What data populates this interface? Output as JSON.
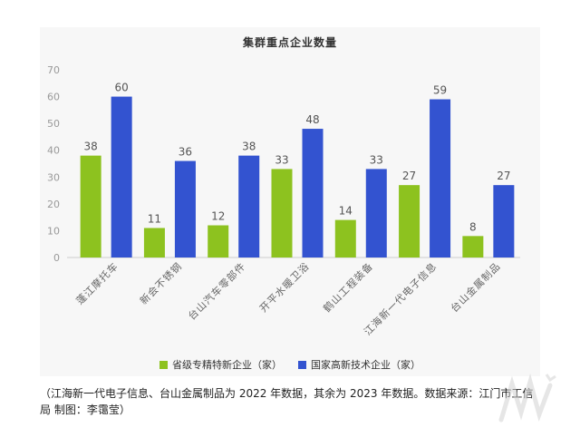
{
  "chart_data": {
    "type": "bar",
    "title": "集群重点企业数量",
    "categories": [
      "蓬江摩托车",
      "新会不锈钢",
      "台山汽车零部件",
      "开平水暖卫浴",
      "鹤山工程装备",
      "江海新一代电子信息",
      "台山金属制品"
    ],
    "series": [
      {
        "name": "省级专精特新企业（家）",
        "values": [
          38,
          11,
          12,
          33,
          14,
          27,
          8
        ],
        "color": "#8dc21f"
      },
      {
        "name": "国家高新技术企业（家）",
        "values": [
          60,
          36,
          38,
          48,
          33,
          59,
          27
        ],
        "color": "#3353d0"
      }
    ],
    "ylim": [
      0,
      70
    ],
    "yticks": [
      0,
      10,
      20,
      30,
      40,
      50,
      60,
      70
    ],
    "grid": false,
    "legend": "bottom"
  },
  "note": "（江海新一代电子信息、台山金属制品为 2022 年数据，其余为 2023 年数据。数据来源：江门市工信局 制图：李霭莹）"
}
